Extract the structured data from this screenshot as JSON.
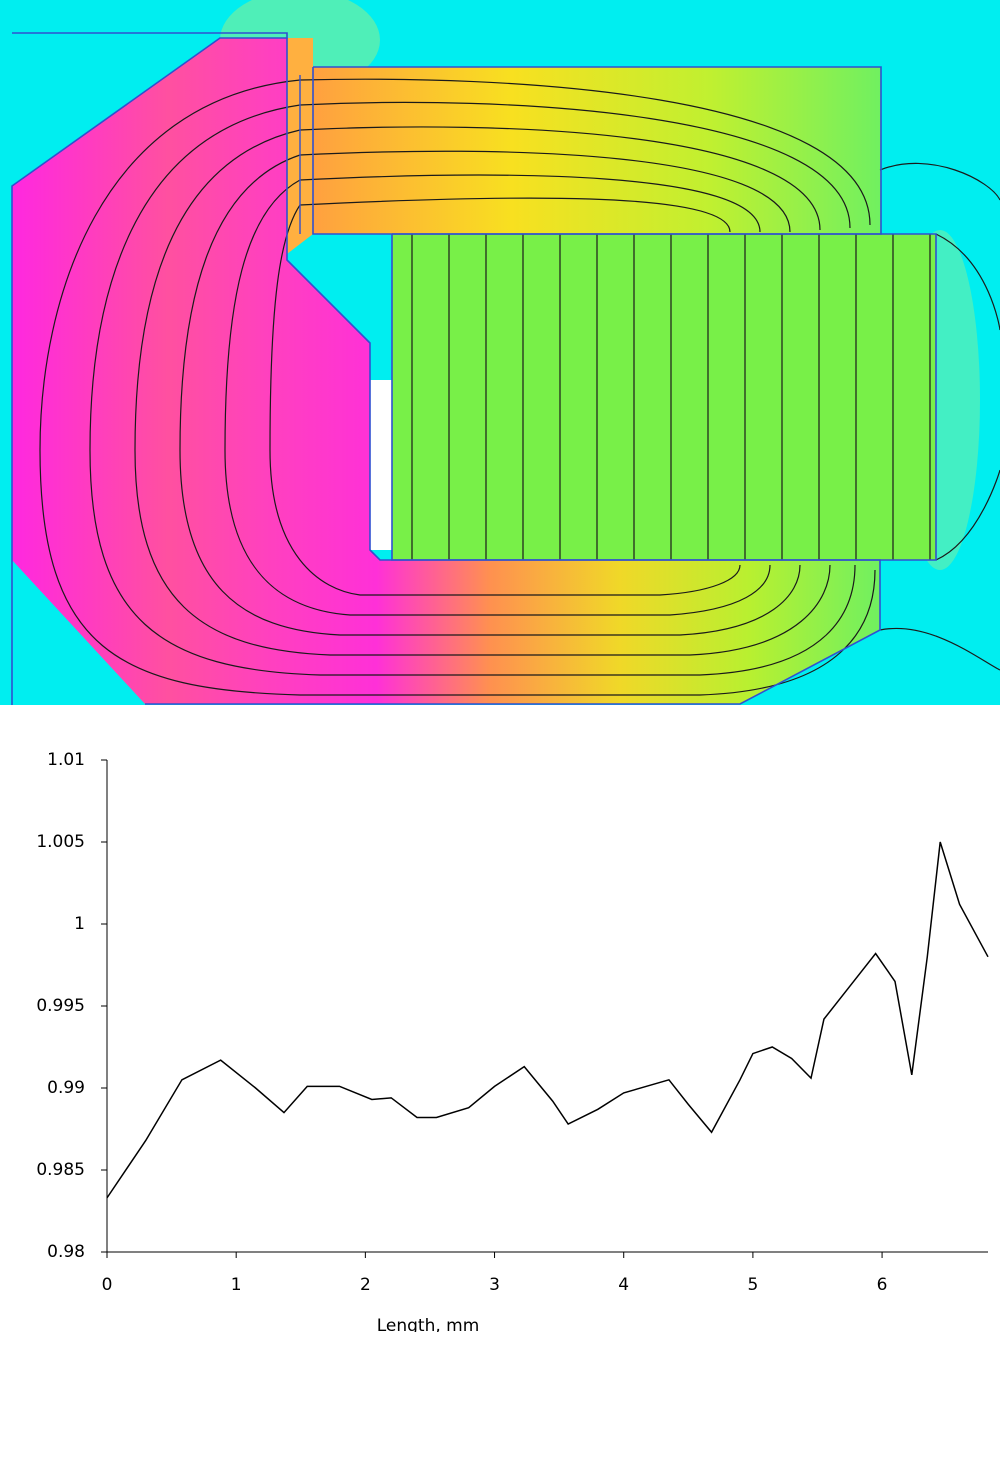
{
  "chart_data": {
    "type": "line",
    "x_label": "Length, mm",
    "x": [
      0,
      0.3,
      0.58,
      0.88,
      1.15,
      1.37,
      1.55,
      1.8,
      2.05,
      2.2,
      2.4,
      2.55,
      2.8,
      3.0,
      3.23,
      3.45,
      3.57,
      3.8,
      4.0,
      4.35,
      4.5,
      4.68,
      4.9,
      5.0,
      5.15,
      5.3,
      5.45,
      5.55,
      5.75,
      5.95,
      6.1,
      6.23,
      6.35,
      6.45,
      6.6,
      6.82
    ],
    "values": [
      0.9833,
      0.9868,
      0.9905,
      0.9917,
      0.99,
      0.9885,
      0.9901,
      0.9901,
      0.9893,
      0.9894,
      0.9882,
      0.9882,
      0.9888,
      0.9901,
      0.9913,
      0.9892,
      0.9878,
      0.9887,
      0.9897,
      0.9905,
      0.989,
      0.9873,
      0.9905,
      0.9921,
      0.9925,
      0.9918,
      0.9906,
      0.9942,
      0.9962,
      0.9982,
      0.9965,
      0.9908,
      0.998,
      1.005,
      1.0012,
      0.998
    ],
    "color": "#000000",
    "xlim": [
      0,
      6.82
    ],
    "xticks": [
      0,
      1,
      2,
      3,
      4,
      5,
      6
    ],
    "ylim": [
      0.98,
      1.01
    ],
    "yticks": [
      0.98,
      0.985,
      0.99,
      0.995,
      1,
      1.005,
      1.01
    ],
    "grid": false
  }
}
